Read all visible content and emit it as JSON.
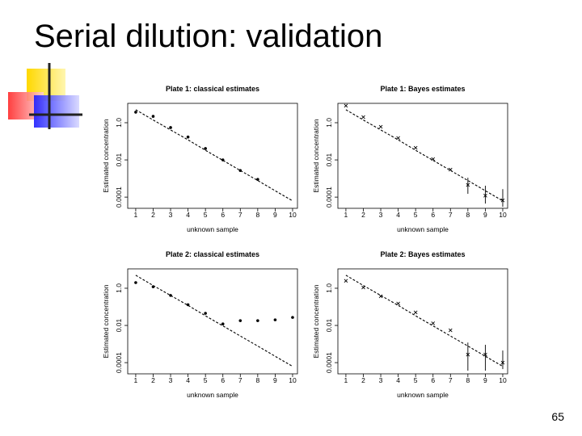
{
  "title": "Serial dilution:  validation",
  "page_number": "65",
  "chart_data": [
    {
      "type": "scatter",
      "title": "Plate 1:  classical estimates",
      "xlabel": "unknown sample",
      "ylabel": "Estimated concentration",
      "log_y": true,
      "xlim": [
        0.54,
        10.28
      ],
      "ylim": [
        2.5e-05,
        11
      ],
      "xticks": [
        1,
        2,
        3,
        4,
        5,
        6,
        7,
        8,
        9,
        10
      ],
      "yticks": [
        0.0001,
        0.01,
        {
          "value": 1,
          "label": "1.0"
        }
      ],
      "series": [
        {
          "type": "scatter",
          "marker": "circle",
          "color": "#000000",
          "x": [
            1,
            2,
            3,
            4,
            5,
            6,
            7,
            8
          ],
          "values": [
            3.7,
            2.2,
            0.55,
            0.17,
            0.041,
            0.01,
            0.0027,
            0.0009
          ]
        },
        {
          "type": "line",
          "style": "dashed",
          "color": "#000000",
          "x": [
            1,
            2,
            3,
            4,
            5,
            6,
            7,
            8,
            9,
            10
          ],
          "values": [
            5,
            1.4,
            0.41,
            0.12,
            0.033,
            0.0095,
            0.0027,
            0.00078,
            0.00022,
            6.3e-05
          ]
        }
      ]
    },
    {
      "type": "scatter",
      "title": "Plate 1:  Bayes estimates",
      "xlabel": "unknown sample",
      "ylabel": "Estimated concentration",
      "log_y": true,
      "xlim": [
        0.54,
        10.28
      ],
      "ylim": [
        2.5e-05,
        11
      ],
      "xticks": [
        1,
        2,
        3,
        4,
        5,
        6,
        7,
        8,
        9,
        10
      ],
      "yticks": [
        0.0001,
        0.01,
        {
          "value": 1,
          "label": "1.0"
        }
      ],
      "series": [
        {
          "type": "scatter",
          "marker": "x",
          "color": "#000000",
          "x": [
            1,
            2,
            3,
            4,
            5,
            6,
            7,
            8,
            9,
            10
          ],
          "values": [
            8.2,
            2.0,
            0.6,
            0.15,
            0.045,
            0.011,
            0.003,
            0.00045,
            0.00012,
            6.7e-05
          ],
          "lower": [
            null,
            null,
            null,
            null,
            null,
            null,
            null,
            0.00015,
            4.5e-05,
            3e-05
          ],
          "upper": [
            null,
            null,
            null,
            null,
            null,
            null,
            null,
            0.0011,
            0.00041,
            0.00027
          ]
        },
        {
          "type": "line",
          "style": "dashed",
          "color": "#000000",
          "x": [
            1,
            2,
            3,
            4,
            5,
            6,
            7,
            8,
            9,
            10
          ],
          "values": [
            5,
            1.4,
            0.41,
            0.12,
            0.033,
            0.0095,
            0.0027,
            0.00078,
            0.00022,
            6.3e-05
          ]
        }
      ]
    },
    {
      "type": "scatter",
      "title": "Plate 2:  classical estimates",
      "xlabel": "unknown sample",
      "ylabel": "Estimated concentration",
      "log_y": true,
      "xlim": [
        0.54,
        10.28
      ],
      "ylim": [
        2.5e-05,
        11
      ],
      "xticks": [
        1,
        2,
        3,
        4,
        5,
        6,
        7,
        8,
        9,
        10
      ],
      "yticks": [
        0.0001,
        0.01,
        {
          "value": 1,
          "label": "1.0"
        }
      ],
      "series": [
        {
          "type": "scatter",
          "marker": "circle",
          "color": "#000000",
          "x": [
            1,
            2,
            3,
            4,
            5,
            6,
            7,
            8,
            9,
            10
          ],
          "values": [
            2.0,
            1.2,
            0.41,
            0.13,
            0.045,
            0.012,
            0.018,
            0.018,
            0.02,
            0.027
          ]
        },
        {
          "type": "line",
          "style": "dashed",
          "color": "#000000",
          "x": [
            1,
            2,
            3,
            4,
            5,
            6,
            7,
            8,
            9,
            10
          ],
          "values": [
            5,
            1.4,
            0.41,
            0.12,
            0.033,
            0.0095,
            0.0027,
            0.00078,
            0.00022,
            6.3e-05
          ]
        }
      ]
    },
    {
      "type": "scatter",
      "title": "Plate 2:  Bayes estimates",
      "xlabel": "unknown sample",
      "ylabel": "Estimated concentration",
      "log_y": true,
      "xlim": [
        0.54,
        10.28
      ],
      "ylim": [
        2.5e-05,
        11
      ],
      "xticks": [
        1,
        2,
        3,
        4,
        5,
        6,
        7,
        8,
        9,
        10
      ],
      "yticks": [
        0.0001,
        0.01,
        {
          "value": 1,
          "label": "1.0"
        }
      ],
      "series": [
        {
          "type": "scatter",
          "marker": "x",
          "color": "#000000",
          "x": [
            1,
            2,
            3,
            4,
            5,
            6,
            7,
            8,
            9,
            10
          ],
          "values": [
            2.5,
            1.1,
            0.37,
            0.15,
            0.05,
            0.013,
            0.0055,
            0.00027,
            0.00027,
            0.0001
          ],
          "lower": [
            null,
            null,
            null,
            null,
            null,
            null,
            null,
            3.7e-05,
            3.7e-05,
            4.5e-05
          ],
          "upper": [
            null,
            null,
            null,
            null,
            null,
            null,
            null,
            0.0012,
            0.00091,
            0.00045
          ]
        },
        {
          "type": "line",
          "style": "dashed",
          "color": "#000000",
          "x": [
            1,
            2,
            3,
            4,
            5,
            6,
            7,
            8,
            9,
            10
          ],
          "values": [
            5,
            1.4,
            0.41,
            0.12,
            0.033,
            0.0095,
            0.0027,
            0.00078,
            0.00022,
            6.3e-05
          ]
        }
      ]
    }
  ]
}
